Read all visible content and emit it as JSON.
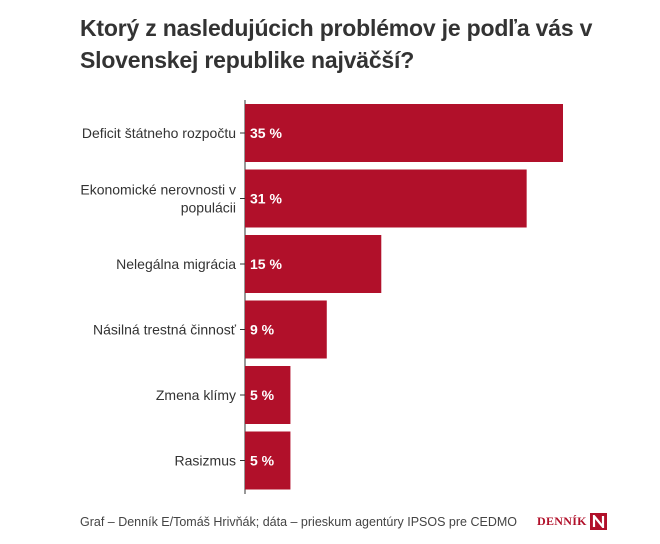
{
  "colors": {
    "bar": "#b1102a",
    "axis": "#333333",
    "text": "#333333"
  },
  "source": "Graf – Denník E/Tomáš Hrivňák; dáta – prieskum agentúry IPSOS pre CEDMO",
  "logo": {
    "word": "DENNÍK",
    "mark": "N"
  },
  "chart_data": {
    "type": "bar",
    "orientation": "horizontal",
    "title": "Ktorý z nasledujúcich problémov je podľa vás v Slovenskej republike najväčší?",
    "categories": [
      [
        "Deficit štátneho rozpočtu"
      ],
      [
        "Ekonomické nerovnosti v",
        "populácii"
      ],
      [
        "Nelegálna migrácia"
      ],
      [
        "Násilná trestná činnosť"
      ],
      [
        "Zmena klímy"
      ],
      [
        "Rasizmus"
      ]
    ],
    "values": [
      35,
      31,
      15,
      9,
      5,
      5
    ],
    "value_labels": [
      "35 %",
      "31 %",
      "15 %",
      "9 %",
      "5 %",
      "5 %"
    ],
    "xlim": [
      0,
      35
    ],
    "xlabel": "",
    "ylabel": "",
    "grid": false
  }
}
